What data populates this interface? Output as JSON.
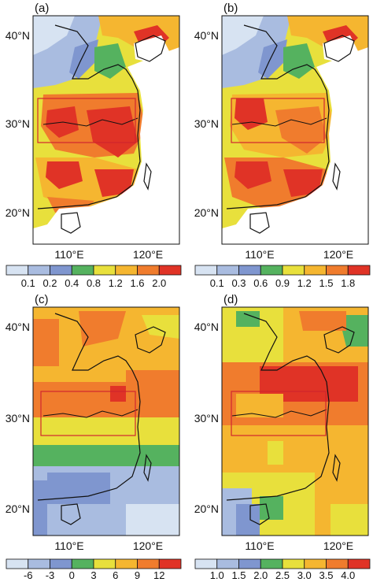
{
  "figure": {
    "panels": [
      {
        "label": "(a)",
        "lat_labels": [
          "40°N",
          "30°N",
          "20°N"
        ],
        "lon_labels": [
          "110°E",
          "120°E"
        ],
        "colorbar_labels": [
          "0.1",
          "0.2",
          "0.4",
          "0.8",
          "1.2",
          "1.6",
          "2.0"
        ],
        "colors": [
          "#d7e3f2",
          "#a9bce0",
          "#7f96cf",
          "#55b25f",
          "#e8e03c",
          "#f5b630",
          "#f07c2d",
          "#e03326"
        ]
      },
      {
        "label": "(b)",
        "lat_labels": [
          "40°N",
          "30°N",
          "20°N"
        ],
        "lon_labels": [
          "110°E",
          "120°E"
        ],
        "colorbar_labels": [
          "0.1",
          "0.3",
          "0.6",
          "0.9",
          "1.2",
          "1.5",
          "1.8"
        ],
        "colors": [
          "#d7e3f2",
          "#a9bce0",
          "#7f96cf",
          "#55b25f",
          "#e8e03c",
          "#f5b630",
          "#f07c2d",
          "#e03326"
        ]
      },
      {
        "label": "(c)",
        "lat_labels": [
          "40°N",
          "30°N",
          "20°N"
        ],
        "lon_labels": [
          "110°E",
          "120°E"
        ],
        "colorbar_labels": [
          "-6",
          "-3",
          "0",
          "3",
          "6",
          "9",
          "12"
        ],
        "colors": [
          "#d7e3f2",
          "#a9bce0",
          "#7f96cf",
          "#55b25f",
          "#e8e03c",
          "#f5b630",
          "#f07c2d",
          "#e03326"
        ]
      },
      {
        "label": "(d)",
        "lat_labels": [
          "40°N",
          "30°N",
          "20°N"
        ],
        "lon_labels": [
          "110°E",
          "120°E"
        ],
        "colorbar_labels": [
          "1.0",
          "1.5",
          "2.0",
          "2.5",
          "3.0",
          "3.5",
          "4.0"
        ],
        "colors": [
          "#d7e3f2",
          "#a9bce0",
          "#7f96cf",
          "#55b25f",
          "#e8e03c",
          "#f5b630",
          "#f07c2d",
          "#e03326"
        ]
      }
    ],
    "box_color": "#d0262e",
    "coast_color": "#111111"
  }
}
